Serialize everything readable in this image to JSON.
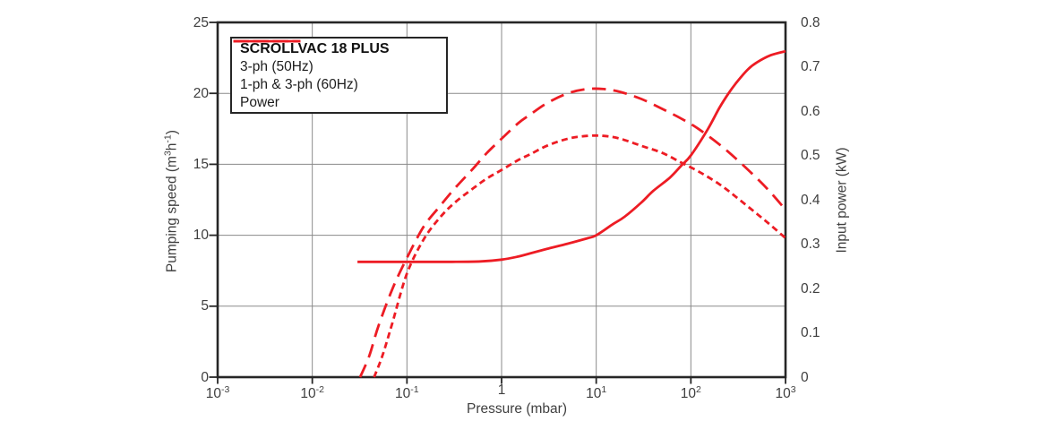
{
  "colors": {
    "accent": "#ed1c24",
    "grid": "#8a8a8a",
    "frame": "#262626",
    "text": "#3f3f3f"
  },
  "chart_data": {
    "type": "line",
    "x_axis": {
      "label": "Pressure (mbar)",
      "scale": "log",
      "range": [
        0.001,
        1000
      ],
      "ticks": [
        {
          "value": 0.001,
          "base": "10",
          "exp": "-3"
        },
        {
          "value": 0.01,
          "base": "10",
          "exp": "-2"
        },
        {
          "value": 0.1,
          "base": "10",
          "exp": "-1"
        },
        {
          "value": 1,
          "base": "1",
          "exp": ""
        },
        {
          "value": 10,
          "base": "10",
          "exp": "1"
        },
        {
          "value": 100,
          "base": "10",
          "exp": "2"
        },
        {
          "value": 1000,
          "base": "10",
          "exp": "3"
        }
      ]
    },
    "y_left": {
      "title_pre": "Pumping speed (m",
      "title_sup1": "3",
      "title_mid": "h",
      "title_sup2": "-1",
      "title_post": ")",
      "range": [
        0,
        25
      ],
      "ticks": [
        {
          "value": 0,
          "label": "0"
        },
        {
          "value": 5,
          "label": "5"
        },
        {
          "value": 10,
          "label": "10"
        },
        {
          "value": 15,
          "label": "15"
        },
        {
          "value": 20,
          "label": "20"
        },
        {
          "value": 25,
          "label": "25"
        }
      ]
    },
    "y_right": {
      "title": "Input power (kW)",
      "range": [
        0,
        0.8
      ],
      "ticks": [
        {
          "value": 0,
          "label": "0"
        },
        {
          "value": 0.1,
          "label": "0.1"
        },
        {
          "value": 0.2,
          "label": "0.2"
        },
        {
          "value": 0.3,
          "label": "0.3"
        },
        {
          "value": 0.4,
          "label": "0.4"
        },
        {
          "value": 0.5,
          "label": "0.5"
        },
        {
          "value": 0.6,
          "label": "0.6"
        },
        {
          "value": 0.7,
          "label": "0.7"
        },
        {
          "value": 0.8,
          "label": "0.8"
        }
      ]
    },
    "grid": {
      "show": true,
      "x_values": [
        0.01,
        0.1,
        1,
        10,
        100
      ],
      "y_left_values": [
        5,
        10,
        15,
        20
      ]
    },
    "legend": {
      "title": "SCROLLVAC 18 PLUS",
      "position": "top-left"
    },
    "series": [
      {
        "name": "3-ph (50Hz)",
        "style": "dash-short",
        "axis": "left",
        "color": "#ed1c24",
        "points": [
          [
            0.045,
            0
          ],
          [
            0.055,
            1.5
          ],
          [
            0.07,
            3.8
          ],
          [
            0.1,
            7.3
          ],
          [
            0.15,
            9.7
          ],
          [
            0.22,
            11.2
          ],
          [
            0.32,
            12.3
          ],
          [
            0.5,
            13.3
          ],
          [
            0.7,
            14.0
          ],
          [
            1,
            14.6
          ],
          [
            1.5,
            15.3
          ],
          [
            2,
            15.7
          ],
          [
            3,
            16.3
          ],
          [
            5,
            16.8
          ],
          [
            8,
            17.0
          ],
          [
            12,
            17.0
          ],
          [
            18,
            16.8
          ],
          [
            30,
            16.3
          ],
          [
            50,
            15.8
          ],
          [
            80,
            15.1
          ],
          [
            120,
            14.5
          ],
          [
            200,
            13.6
          ],
          [
            300,
            12.7
          ],
          [
            500,
            11.5
          ],
          [
            700,
            10.7
          ],
          [
            1000,
            9.8
          ]
        ]
      },
      {
        "name": "1-ph & 3-ph (60Hz)",
        "style": "dash-long",
        "axis": "left",
        "color": "#ed1c24",
        "points": [
          [
            0.032,
            0
          ],
          [
            0.04,
            1.5
          ],
          [
            0.05,
            3.6
          ],
          [
            0.07,
            6.2
          ],
          [
            0.1,
            8.4
          ],
          [
            0.15,
            10.6
          ],
          [
            0.22,
            12.0
          ],
          [
            0.32,
            13.3
          ],
          [
            0.5,
            14.7
          ],
          [
            0.7,
            15.8
          ],
          [
            1,
            16.8
          ],
          [
            1.5,
            17.9
          ],
          [
            2,
            18.5
          ],
          [
            3,
            19.3
          ],
          [
            5,
            20.0
          ],
          [
            8,
            20.3
          ],
          [
            12,
            20.3
          ],
          [
            18,
            20.1
          ],
          [
            30,
            19.6
          ],
          [
            50,
            18.9
          ],
          [
            80,
            18.2
          ],
          [
            120,
            17.5
          ],
          [
            200,
            16.4
          ],
          [
            300,
            15.4
          ],
          [
            500,
            14.0
          ],
          [
            700,
            13.0
          ],
          [
            1000,
            11.8
          ]
        ]
      },
      {
        "name": "Power",
        "style": "solid",
        "axis": "right",
        "color": "#ed1c24",
        "points": [
          [
            0.03,
            0.26
          ],
          [
            0.1,
            0.26
          ],
          [
            0.3,
            0.26
          ],
          [
            0.6,
            0.261
          ],
          [
            1,
            0.265
          ],
          [
            1.5,
            0.272
          ],
          [
            2,
            0.279
          ],
          [
            3,
            0.289
          ],
          [
            5,
            0.301
          ],
          [
            8,
            0.313
          ],
          [
            10,
            0.32
          ],
          [
            15,
            0.345
          ],
          [
            20,
            0.362
          ],
          [
            30,
            0.394
          ],
          [
            40,
            0.42
          ],
          [
            60,
            0.45
          ],
          [
            80,
            0.478
          ],
          [
            100,
            0.5
          ],
          [
            150,
            0.558
          ],
          [
            200,
            0.607
          ],
          [
            250,
            0.64
          ],
          [
            300,
            0.663
          ],
          [
            400,
            0.694
          ],
          [
            500,
            0.71
          ],
          [
            700,
            0.726
          ],
          [
            1000,
            0.735
          ]
        ]
      }
    ]
  }
}
